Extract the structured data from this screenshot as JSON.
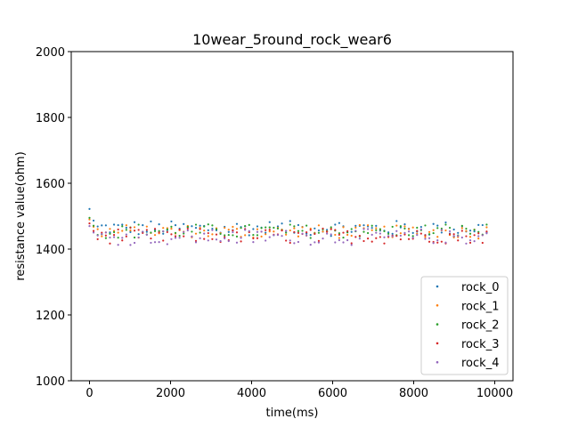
{
  "chart_data": {
    "type": "scatter",
    "title": "10wear_5round_rock_wear6",
    "xlabel": "time(ms)",
    "ylabel": "resistance value(ohm)",
    "xlim": [
      -450,
      10450
    ],
    "ylim": [
      1000,
      2000
    ],
    "xticks": [
      0,
      2000,
      4000,
      6000,
      8000,
      10000
    ],
    "yticks": [
      1000,
      1200,
      1400,
      1600,
      1800,
      2000
    ],
    "grid": false,
    "legend_position": "lower right",
    "x_range": [
      0,
      9800
    ],
    "points_per_series": 98,
    "series": [
      {
        "name": "rock_0",
        "color": "#1f77b4",
        "start": 1522,
        "mean": 1463,
        "spread": 14
      },
      {
        "name": "rock_1",
        "color": "#ff7f0e",
        "start": 1490,
        "mean": 1453,
        "spread": 12
      },
      {
        "name": "rock_2",
        "color": "#2ca02c",
        "start": 1495,
        "mean": 1455,
        "spread": 13
      },
      {
        "name": "rock_3",
        "color": "#d62728",
        "start": 1478,
        "mean": 1440,
        "spread": 14
      },
      {
        "name": "rock_4",
        "color": "#9467bd",
        "start": 1470,
        "mean": 1437,
        "spread": 14
      }
    ]
  }
}
